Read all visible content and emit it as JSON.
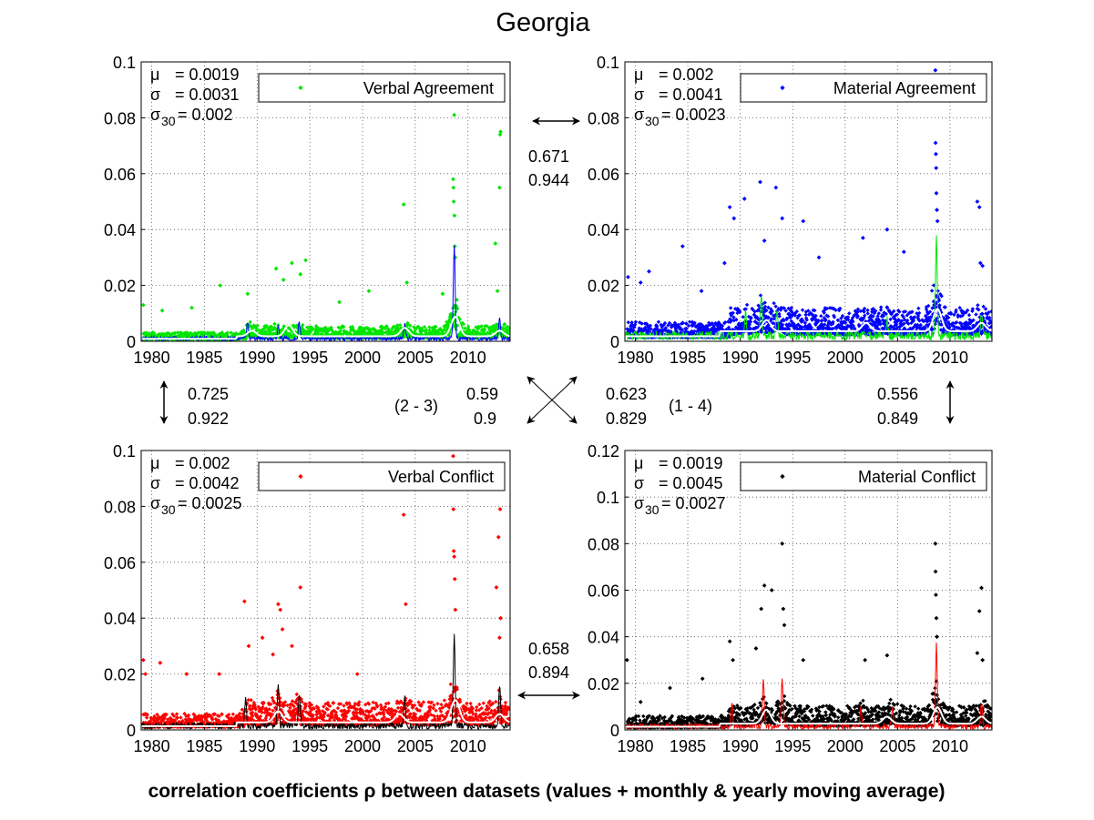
{
  "title": "Georgia",
  "footer": "correlation coefficients ρ between datasets (values + monthly & yearly moving average)",
  "colors": {
    "verbal_agreement": "#00e600",
    "material_agreement": "#0000ff",
    "verbal_conflict": "#ff0000",
    "material_conflict": "#000000",
    "yearly_avg": "#ffffff"
  },
  "chart_data": [
    {
      "type": "scatter",
      "panel": "top-left",
      "series_name": "Verbal Agreement",
      "color": "#00e600",
      "monthly_color": "#0000ff",
      "stats": [
        {
          "label": "μ",
          "sub": "",
          "value": "= 0.0019"
        },
        {
          "label": "σ",
          "sub": "",
          "value": "= 0.0031"
        },
        {
          "label": "σ",
          "sub": "30",
          "value": "= 0.002"
        }
      ],
      "xlim": [
        1979,
        2014
      ],
      "ylim": [
        0,
        0.1
      ],
      "xticks": [
        "1980",
        "1985",
        "1990",
        "1995",
        "2000",
        "2005",
        "2010"
      ],
      "yticks": [
        "0",
        "0.02",
        "0.04",
        "0.06",
        "0.08",
        "0.1"
      ],
      "grid": true,
      "legend_position": "top-right",
      "baseline_mean": 0.002,
      "noise_spread": 0.0045,
      "spikes": [
        {
          "x": 1979.2,
          "y": 0.013
        },
        {
          "x": 1981.0,
          "y": 0.011
        },
        {
          "x": 1983.8,
          "y": 0.012
        },
        {
          "x": 1986.5,
          "y": 0.02
        },
        {
          "x": 1989.1,
          "y": 0.017
        },
        {
          "x": 1991.8,
          "y": 0.026
        },
        {
          "x": 1992.5,
          "y": 0.022
        },
        {
          "x": 1993.3,
          "y": 0.028
        },
        {
          "x": 1994.1,
          "y": 0.024
        },
        {
          "x": 1994.6,
          "y": 0.029
        },
        {
          "x": 1997.8,
          "y": 0.014
        },
        {
          "x": 2000.6,
          "y": 0.018
        },
        {
          "x": 2003.9,
          "y": 0.049
        },
        {
          "x": 2004.2,
          "y": 0.021
        },
        {
          "x": 2007.6,
          "y": 0.017
        },
        {
          "x": 2008.6,
          "y": 0.058
        },
        {
          "x": 2008.62,
          "y": 0.055
        },
        {
          "x": 2008.65,
          "y": 0.05
        },
        {
          "x": 2008.7,
          "y": 0.081
        },
        {
          "x": 2008.72,
          "y": 0.045
        },
        {
          "x": 2008.75,
          "y": 0.034
        },
        {
          "x": 2008.8,
          "y": 0.03
        },
        {
          "x": 2012.6,
          "y": 0.035
        },
        {
          "x": 2013.0,
          "y": 0.055
        },
        {
          "x": 2013.05,
          "y": 0.074
        },
        {
          "x": 2013.1,
          "y": 0.075
        },
        {
          "x": 2012.8,
          "y": 0.018
        }
      ],
      "bumps": [
        {
          "x": 1989.1,
          "h": 0.006
        },
        {
          "x": 1992.0,
          "h": 0.004
        },
        {
          "x": 1994.0,
          "h": 0.006
        },
        {
          "x": 2004.0,
          "h": 0.005
        },
        {
          "x": 2008.7,
          "h": 0.033
        },
        {
          "x": 2013.0,
          "h": 0.008
        }
      ],
      "yearly_bumps": [
        {
          "x": 1989.5,
          "h": 0.002
        },
        {
          "x": 1993.0,
          "h": 0.004
        },
        {
          "x": 2004.0,
          "h": 0.003
        },
        {
          "x": 2008.8,
          "h": 0.007
        },
        {
          "x": 2013.0,
          "h": 0.002
        }
      ]
    },
    {
      "type": "scatter",
      "panel": "top-right",
      "series_name": "Material Agreement",
      "color": "#0000ff",
      "monthly_color": "#00e600",
      "stats": [
        {
          "label": "μ",
          "sub": "",
          "value": "= 0.002"
        },
        {
          "label": "σ",
          "sub": "",
          "value": "= 0.0041"
        },
        {
          "label": "σ",
          "sub": "30",
          "value": "= 0.0023"
        }
      ],
      "xlim": [
        1979,
        2014
      ],
      "ylim": [
        0,
        0.1
      ],
      "xticks": [
        "1980",
        "1985",
        "1990",
        "1995",
        "2000",
        "2005",
        "2010"
      ],
      "yticks": [
        "0",
        "0.02",
        "0.04",
        "0.06",
        "0.08",
        "0.1"
      ],
      "grid": true,
      "legend_position": "top-right",
      "baseline_mean": 0.004,
      "noise_spread": 0.01,
      "spikes": [
        {
          "x": 1979.3,
          "y": 0.023
        },
        {
          "x": 1980.5,
          "y": 0.021
        },
        {
          "x": 1981.3,
          "y": 0.025
        },
        {
          "x": 1984.5,
          "y": 0.034
        },
        {
          "x": 1986.3,
          "y": 0.018
        },
        {
          "x": 1988.5,
          "y": 0.028
        },
        {
          "x": 1989.0,
          "y": 0.048
        },
        {
          "x": 1989.4,
          "y": 0.044
        },
        {
          "x": 1990.4,
          "y": 0.051
        },
        {
          "x": 1991.9,
          "y": 0.057
        },
        {
          "x": 1992.3,
          "y": 0.036
        },
        {
          "x": 1993.4,
          "y": 0.055
        },
        {
          "x": 1994.0,
          "y": 0.044
        },
        {
          "x": 1996.0,
          "y": 0.043
        },
        {
          "x": 1997.5,
          "y": 0.03
        },
        {
          "x": 2001.7,
          "y": 0.037
        },
        {
          "x": 2004.0,
          "y": 0.04
        },
        {
          "x": 2005.6,
          "y": 0.032
        },
        {
          "x": 2008.6,
          "y": 0.097
        },
        {
          "x": 2008.62,
          "y": 0.071
        },
        {
          "x": 2008.65,
          "y": 0.067
        },
        {
          "x": 2008.68,
          "y": 0.062
        },
        {
          "x": 2008.7,
          "y": 0.053
        },
        {
          "x": 2008.75,
          "y": 0.047
        },
        {
          "x": 2008.8,
          "y": 0.043
        },
        {
          "x": 2012.6,
          "y": 0.05
        },
        {
          "x": 2012.8,
          "y": 0.048
        },
        {
          "x": 2012.9,
          "y": 0.028
        },
        {
          "x": 2013.1,
          "y": 0.027
        }
      ],
      "bumps": [
        {
          "x": 1990.5,
          "h": 0.008
        },
        {
          "x": 1992.0,
          "h": 0.014
        },
        {
          "x": 1993.5,
          "h": 0.01
        },
        {
          "x": 2004.0,
          "h": 0.006
        },
        {
          "x": 2008.7,
          "h": 0.035
        },
        {
          "x": 2013.0,
          "h": 0.008
        }
      ],
      "yearly_bumps": [
        {
          "x": 1992.5,
          "h": 0.004
        },
        {
          "x": 2002.0,
          "h": 0.003
        },
        {
          "x": 2008.8,
          "h": 0.008
        },
        {
          "x": 2013.0,
          "h": 0.003
        }
      ]
    },
    {
      "type": "scatter",
      "panel": "bottom-left",
      "series_name": "Verbal Conflict",
      "color": "#ff0000",
      "monthly_color": "#000000",
      "stats": [
        {
          "label": "μ",
          "sub": "",
          "value": "= 0.002"
        },
        {
          "label": "σ",
          "sub": "",
          "value": "= 0.0042"
        },
        {
          "label": "σ",
          "sub": "30",
          "value": "= 0.0025"
        }
      ],
      "xlim": [
        1979,
        2014
      ],
      "ylim": [
        0,
        0.1
      ],
      "xticks": [
        "1980",
        "1985",
        "1990",
        "1995",
        "2000",
        "2005",
        "2010"
      ],
      "yticks": [
        "0",
        "0.02",
        "0.04",
        "0.06",
        "0.08",
        "0.1"
      ],
      "grid": true,
      "legend_position": "top-right",
      "baseline_mean": 0.003,
      "noise_spread": 0.0085,
      "spikes": [
        {
          "x": 1979.2,
          "y": 0.025
        },
        {
          "x": 1979.4,
          "y": 0.02
        },
        {
          "x": 1980.8,
          "y": 0.024
        },
        {
          "x": 1983.3,
          "y": 0.02
        },
        {
          "x": 1986.4,
          "y": 0.02
        },
        {
          "x": 1988.8,
          "y": 0.046
        },
        {
          "x": 1989.2,
          "y": 0.03
        },
        {
          "x": 1990.5,
          "y": 0.033
        },
        {
          "x": 1991.5,
          "y": 0.027
        },
        {
          "x": 1992.0,
          "y": 0.045
        },
        {
          "x": 1992.2,
          "y": 0.043
        },
        {
          "x": 1992.4,
          "y": 0.036
        },
        {
          "x": 1993.3,
          "y": 0.03
        },
        {
          "x": 1994.1,
          "y": 0.051
        },
        {
          "x": 1999.5,
          "y": 0.02
        },
        {
          "x": 2003.9,
          "y": 0.077
        },
        {
          "x": 2004.1,
          "y": 0.045
        },
        {
          "x": 2008.6,
          "y": 0.098
        },
        {
          "x": 2008.62,
          "y": 0.079
        },
        {
          "x": 2008.65,
          "y": 0.064
        },
        {
          "x": 2008.7,
          "y": 0.062
        },
        {
          "x": 2008.75,
          "y": 0.054
        },
        {
          "x": 2008.8,
          "y": 0.043
        },
        {
          "x": 2012.7,
          "y": 0.051
        },
        {
          "x": 2012.9,
          "y": 0.069
        },
        {
          "x": 2013.05,
          "y": 0.079
        },
        {
          "x": 2013.1,
          "y": 0.04
        },
        {
          "x": 2013.0,
          "y": 0.033
        }
      ],
      "bumps": [
        {
          "x": 1988.9,
          "h": 0.01
        },
        {
          "x": 1992.0,
          "h": 0.016
        },
        {
          "x": 1994.0,
          "h": 0.012
        },
        {
          "x": 2004.0,
          "h": 0.01
        },
        {
          "x": 2008.7,
          "h": 0.032
        },
        {
          "x": 2013.0,
          "h": 0.015
        }
      ],
      "yearly_bumps": [
        {
          "x": 1992.0,
          "h": 0.004
        },
        {
          "x": 2003.5,
          "h": 0.003
        },
        {
          "x": 2008.8,
          "h": 0.008
        },
        {
          "x": 2013.0,
          "h": 0.003
        }
      ]
    },
    {
      "type": "scatter",
      "panel": "bottom-right",
      "series_name": "Material Conflict",
      "color": "#000000",
      "monthly_color": "#ff0000",
      "stats": [
        {
          "label": "μ",
          "sub": "",
          "value": "= 0.0019"
        },
        {
          "label": "σ",
          "sub": "",
          "value": "= 0.0045"
        },
        {
          "label": "σ",
          "sub": "30",
          "value": "= 0.0027"
        }
      ],
      "xlim": [
        1979,
        2014
      ],
      "ylim": [
        0,
        0.12
      ],
      "xticks": [
        "1980",
        "1985",
        "1990",
        "1995",
        "2000",
        "2005",
        "2010"
      ],
      "yticks": [
        "0",
        "0.02",
        "0.04",
        "0.06",
        "0.08",
        "0.1",
        "0.12"
      ],
      "grid": true,
      "legend_position": "top-right",
      "baseline_mean": 0.003,
      "noise_spread": 0.009,
      "spikes": [
        {
          "x": 1979.2,
          "y": 0.03
        },
        {
          "x": 1980.5,
          "y": 0.012
        },
        {
          "x": 1983.3,
          "y": 0.018
        },
        {
          "x": 1986.4,
          "y": 0.022
        },
        {
          "x": 1989.0,
          "y": 0.038
        },
        {
          "x": 1989.3,
          "y": 0.03
        },
        {
          "x": 1991.5,
          "y": 0.035
        },
        {
          "x": 1992.0,
          "y": 0.052
        },
        {
          "x": 1992.3,
          "y": 0.062
        },
        {
          "x": 1993.0,
          "y": 0.06
        },
        {
          "x": 1994.0,
          "y": 0.08
        },
        {
          "x": 1994.1,
          "y": 0.052
        },
        {
          "x": 1994.2,
          "y": 0.045
        },
        {
          "x": 1996.0,
          "y": 0.03
        },
        {
          "x": 2001.9,
          "y": 0.03
        },
        {
          "x": 2004.0,
          "y": 0.032
        },
        {
          "x": 2008.6,
          "y": 0.08
        },
        {
          "x": 2008.62,
          "y": 0.068
        },
        {
          "x": 2008.65,
          "y": 0.058
        },
        {
          "x": 2008.7,
          "y": 0.048
        },
        {
          "x": 2008.75,
          "y": 0.04
        },
        {
          "x": 2012.6,
          "y": 0.033
        },
        {
          "x": 2012.8,
          "y": 0.051
        },
        {
          "x": 2013.0,
          "y": 0.061
        },
        {
          "x": 2013.1,
          "y": 0.03
        }
      ],
      "bumps": [
        {
          "x": 1989.2,
          "h": 0.01
        },
        {
          "x": 1992.2,
          "h": 0.02
        },
        {
          "x": 1994.0,
          "h": 0.02
        },
        {
          "x": 2001.5,
          "h": 0.008
        },
        {
          "x": 2004.5,
          "h": 0.008
        },
        {
          "x": 2008.7,
          "h": 0.035
        },
        {
          "x": 2013.0,
          "h": 0.01
        }
      ],
      "yearly_bumps": [
        {
          "x": 1992.5,
          "h": 0.006
        },
        {
          "x": 2004.0,
          "h": 0.003
        },
        {
          "x": 2008.8,
          "h": 0.007
        },
        {
          "x": 2013.0,
          "h": 0.003
        }
      ]
    }
  ],
  "correlations": {
    "top": [
      "0.671",
      "0.944"
    ],
    "left": [
      "0.725",
      "0.922"
    ],
    "right": [
      "0.556",
      "0.849"
    ],
    "bottom": [
      "0.658",
      "0.894"
    ],
    "diag_2_3_label": "(2 - 3)",
    "diag_2_3": [
      "0.59",
      "0.9"
    ],
    "diag_1_4": [
      "0.623",
      "0.829"
    ],
    "diag_1_4_label": "(1 - 4)"
  }
}
